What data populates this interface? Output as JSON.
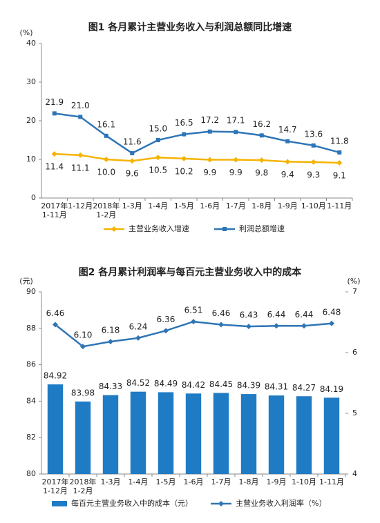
{
  "chart_data": [
    {
      "type": "line",
      "title": "图1 各月累计主营业务收入与利润总额同比增速",
      "ylabel": "(%)",
      "categories": [
        "2017年\n1-11月",
        "1-12月",
        "2018年\n1-2月",
        "1-3月",
        "1-4月",
        "1-5月",
        "1-6月",
        "1-7月",
        "1-8月",
        "1-9月",
        "1-10月",
        "1-11月"
      ],
      "ylim": [
        0,
        40
      ],
      "yticks": [
        0,
        10,
        20,
        30,
        40
      ],
      "grid": false,
      "series": [
        {
          "name": "主营业务收入增速",
          "color": "#f5b301",
          "marker": "diamond",
          "label_side": "below",
          "values": [
            11.4,
            11.1,
            10.0,
            9.6,
            10.5,
            10.2,
            9.9,
            9.9,
            9.8,
            9.4,
            9.3,
            9.1
          ],
          "value_labels": [
            "11.4",
            "11.1",
            "10.0",
            "9.6",
            "10.5",
            "10.2",
            "9.9",
            "9.9",
            "9.8",
            "9.4",
            "9.3",
            "9.1"
          ]
        },
        {
          "name": "利润总额增速",
          "color": "#2e75b6",
          "marker": "square",
          "label_side": "above",
          "values": [
            21.9,
            21.0,
            16.1,
            11.6,
            15.0,
            16.5,
            17.2,
            17.1,
            16.2,
            14.7,
            13.6,
            11.8
          ],
          "value_labels": [
            "21.9",
            "21.0",
            "16.1",
            "11.6",
            "15.0",
            "16.5",
            "17.2",
            "17.1",
            "16.2",
            "14.7",
            "13.6",
            "11.8"
          ]
        }
      ]
    },
    {
      "type": "bar",
      "title": "图2 各月累计利润率与每百元主营业务收入中的成本",
      "ylabel": "(元)",
      "y2label": "(%)",
      "categories": [
        "2017年\n1-12月",
        "2018年\n1-2月",
        "1-3月",
        "1-4月",
        "1-5月",
        "1-6月",
        "1-7月",
        "1-8月",
        "1-9月",
        "1-10月",
        "1-11月"
      ],
      "ylim": [
        80,
        90
      ],
      "yticks": [
        80,
        82,
        84,
        86,
        88,
        90
      ],
      "y2lim": [
        4,
        7
      ],
      "y2ticks": [
        4,
        5,
        6,
        7
      ],
      "grid": false,
      "series": [
        {
          "name": "每百元主营业务收入中的成本（元）",
          "color": "#1f7bc4",
          "type": "bar",
          "values": [
            84.92,
            83.98,
            84.33,
            84.52,
            84.49,
            84.42,
            84.45,
            84.39,
            84.31,
            84.27,
            84.19
          ]
        },
        {
          "name": "主营业务收入利润率（%）",
          "color": "#2e75b6",
          "type": "line",
          "axis": "y2",
          "marker": "diamond",
          "label_side": "above",
          "values": [
            6.46,
            6.1,
            6.18,
            6.24,
            6.36,
            6.51,
            6.46,
            6.43,
            6.44,
            6.44,
            6.48
          ],
          "value_labels": [
            "6.46",
            "6.10",
            "6.18",
            "6.24",
            "6.36",
            "6.51",
            "6.46",
            "6.43",
            "6.44",
            "6.44",
            "6.48"
          ]
        }
      ]
    }
  ]
}
